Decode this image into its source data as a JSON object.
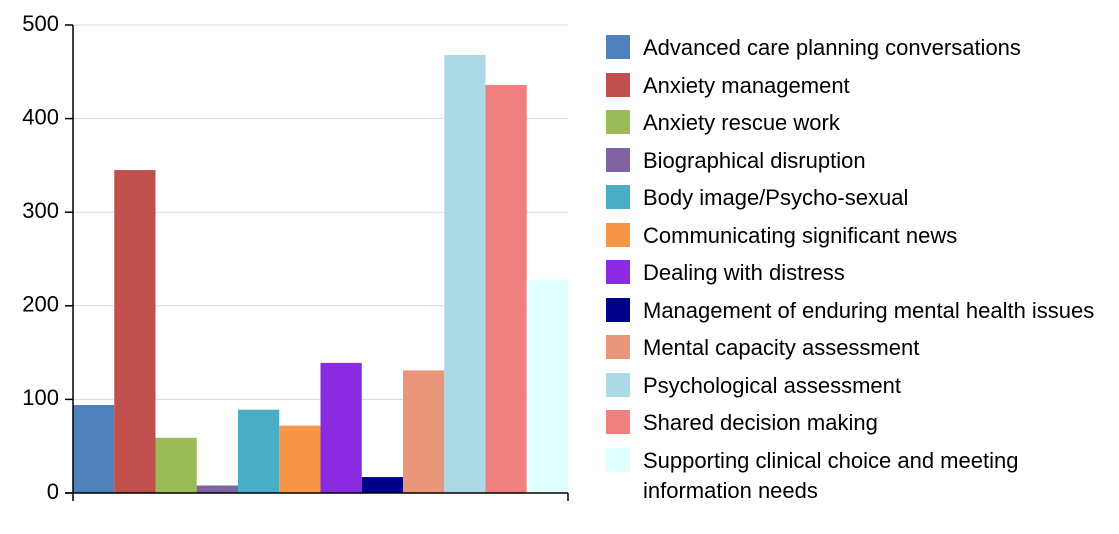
{
  "chart_data": {
    "type": "bar",
    "categories": [
      null
    ],
    "series": [
      {
        "name": "Advanced care planning conversations",
        "color": "#4f81bd",
        "values": [
          94
        ]
      },
      {
        "name": "Anxiety management",
        "color": "#c0504d",
        "values": [
          345
        ]
      },
      {
        "name": "Anxiety rescue work",
        "color": "#9bbb59",
        "values": [
          59
        ]
      },
      {
        "name": "Biographical disruption",
        "color": "#8064a2",
        "values": [
          8
        ]
      },
      {
        "name": "Body image/Psycho-sexual",
        "color": "#4bacc6",
        "values": [
          89
        ]
      },
      {
        "name": "Communicating significant news",
        "color": "#f79646",
        "values": [
          72
        ]
      },
      {
        "name": "Dealing with distress",
        "color": "#8a2be2",
        "values": [
          139
        ]
      },
      {
        "name": "Management of enduring mental health issues",
        "color": "#00008b",
        "values": [
          17
        ]
      },
      {
        "name": "Mental capacity assessment",
        "color": "#e9967a",
        "values": [
          131
        ]
      },
      {
        "name": "Psychological assessment",
        "color": "#add8e6",
        "values": [
          468
        ]
      },
      {
        "name": "Shared decision making",
        "color": "#f08080",
        "values": [
          436
        ]
      },
      {
        "name": "Supporting clinical choice and meeting information needs",
        "color": "#e0ffff",
        "values": [
          228
        ]
      }
    ],
    "ylim": [
      0,
      500
    ],
    "yticks": [
      0,
      100,
      200,
      300,
      400,
      500
    ],
    "grid": true,
    "legend": "right"
  }
}
